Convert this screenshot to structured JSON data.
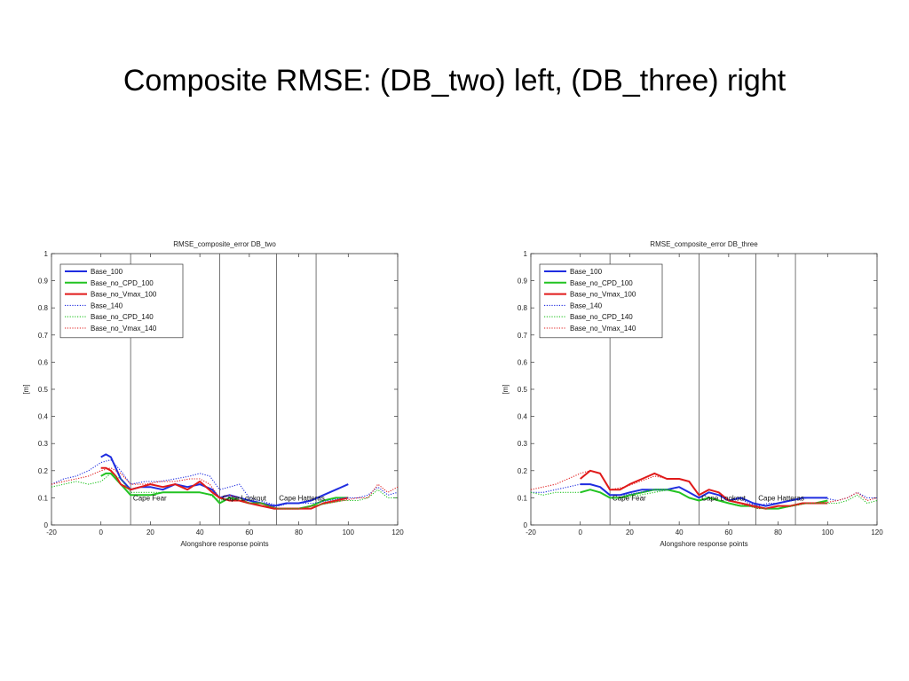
{
  "slide": {
    "title": "Composite RMSE: (DB_two) left, (DB_three) right"
  },
  "colors": {
    "blue": "#1f2de0",
    "green": "#22c322",
    "red": "#e01a1a"
  },
  "chart_data": [
    {
      "type": "line",
      "title": "RMSE_composite_error DB_two",
      "xlabel": "Alongshore response points",
      "ylabel": "[m]",
      "xlim": [
        -20,
        120
      ],
      "ylim": [
        0,
        1
      ],
      "xticks": [
        -20,
        0,
        20,
        40,
        60,
        80,
        100,
        120
      ],
      "yticks": [
        0,
        0.1,
        0.2,
        0.3,
        0.4,
        0.5,
        0.6,
        0.7,
        0.8,
        0.9,
        1
      ],
      "grid": false,
      "legend_position": "top-left",
      "vertical_lines": [
        12,
        48,
        71,
        87
      ],
      "regions": [
        {
          "label": "Cape Fear",
          "x": 13,
          "y": 0.1
        },
        {
          "label": "Cape Lookout",
          "x": 49,
          "y": 0.1
        },
        {
          "label": "Cape Hatteras",
          "x": 72,
          "y": 0.1
        }
      ],
      "series": [
        {
          "name": "Base_100",
          "color": "#1f2de0",
          "style": "solid",
          "x": [
            0,
            2,
            4,
            6,
            8,
            10,
            12,
            16,
            20,
            25,
            30,
            35,
            40,
            45,
            48,
            52,
            56,
            60,
            65,
            70,
            75,
            80,
            85,
            90,
            95,
            100
          ],
          "y": [
            0.25,
            0.26,
            0.25,
            0.21,
            0.17,
            0.15,
            0.13,
            0.14,
            0.14,
            0.13,
            0.15,
            0.14,
            0.15,
            0.13,
            0.1,
            0.11,
            0.1,
            0.09,
            0.08,
            0.07,
            0.08,
            0.08,
            0.09,
            0.11,
            0.13,
            0.15
          ]
        },
        {
          "name": "Base_no_CPD_100",
          "color": "#22c322",
          "style": "solid",
          "x": [
            0,
            2,
            4,
            6,
            8,
            10,
            12,
            16,
            20,
            25,
            30,
            35,
            40,
            45,
            48,
            52,
            56,
            60,
            65,
            70,
            75,
            80,
            85,
            90,
            95,
            100
          ],
          "y": [
            0.18,
            0.19,
            0.19,
            0.17,
            0.15,
            0.13,
            0.11,
            0.11,
            0.11,
            0.12,
            0.12,
            0.12,
            0.12,
            0.11,
            0.08,
            0.1,
            0.09,
            0.08,
            0.08,
            0.06,
            0.06,
            0.06,
            0.07,
            0.09,
            0.1,
            0.1
          ]
        },
        {
          "name": "Base_no_Vmax_100",
          "color": "#e01a1a",
          "style": "solid",
          "x": [
            0,
            2,
            4,
            6,
            8,
            10,
            12,
            16,
            20,
            25,
            30,
            35,
            40,
            45,
            48,
            52,
            56,
            60,
            65,
            70,
            75,
            80,
            85,
            90,
            95,
            100
          ],
          "y": [
            0.21,
            0.21,
            0.2,
            0.18,
            0.15,
            0.14,
            0.13,
            0.14,
            0.15,
            0.14,
            0.15,
            0.13,
            0.16,
            0.12,
            0.1,
            0.09,
            0.09,
            0.08,
            0.07,
            0.06,
            0.06,
            0.06,
            0.06,
            0.08,
            0.09,
            0.1
          ]
        },
        {
          "name": "Base_140",
          "color": "#1f2de0",
          "style": "dotted",
          "x": [
            -20,
            -15,
            -10,
            -5,
            0,
            4,
            8,
            12,
            18,
            24,
            30,
            36,
            40,
            44,
            48,
            52,
            56,
            60,
            64,
            68,
            72,
            76,
            80,
            86,
            92,
            98,
            104,
            108,
            112,
            116,
            120
          ],
          "y": [
            0.15,
            0.17,
            0.18,
            0.2,
            0.23,
            0.24,
            0.2,
            0.15,
            0.16,
            0.16,
            0.17,
            0.18,
            0.19,
            0.18,
            0.13,
            0.14,
            0.15,
            0.1,
            0.09,
            0.08,
            0.07,
            0.08,
            0.08,
            0.08,
            0.09,
            0.1,
            0.1,
            0.11,
            0.14,
            0.11,
            0.12
          ]
        },
        {
          "name": "Base_no_CPD_140",
          "color": "#22c322",
          "style": "dotted",
          "x": [
            -20,
            -15,
            -10,
            -5,
            0,
            4,
            8,
            12,
            18,
            24,
            30,
            36,
            40,
            44,
            48,
            52,
            56,
            60,
            64,
            68,
            72,
            76,
            80,
            86,
            92,
            98,
            104,
            108,
            112,
            116,
            120
          ],
          "y": [
            0.14,
            0.15,
            0.16,
            0.15,
            0.16,
            0.19,
            0.17,
            0.12,
            0.12,
            0.12,
            0.12,
            0.12,
            0.12,
            0.11,
            0.09,
            0.1,
            0.1,
            0.08,
            0.08,
            0.07,
            0.06,
            0.06,
            0.06,
            0.07,
            0.08,
            0.09,
            0.09,
            0.1,
            0.13,
            0.1,
            0.1
          ]
        },
        {
          "name": "Base_no_Vmax_140",
          "color": "#e01a1a",
          "style": "dotted",
          "x": [
            -20,
            -15,
            -10,
            -5,
            0,
            4,
            8,
            12,
            18,
            24,
            30,
            36,
            40,
            44,
            48,
            52,
            56,
            60,
            64,
            68,
            72,
            76,
            80,
            86,
            92,
            98,
            104,
            108,
            112,
            116,
            120
          ],
          "y": [
            0.15,
            0.16,
            0.17,
            0.18,
            0.2,
            0.21,
            0.19,
            0.15,
            0.15,
            0.16,
            0.16,
            0.17,
            0.17,
            0.15,
            0.1,
            0.11,
            0.1,
            0.08,
            0.08,
            0.07,
            0.06,
            0.06,
            0.06,
            0.07,
            0.08,
            0.09,
            0.1,
            0.1,
            0.15,
            0.12,
            0.14
          ]
        }
      ]
    },
    {
      "type": "line",
      "title": "RMSE_composite_error DB_three",
      "xlabel": "Alongshore response points",
      "ylabel": "[m]",
      "xlim": [
        -20,
        120
      ],
      "ylim": [
        0,
        1
      ],
      "xticks": [
        -20,
        0,
        20,
        40,
        60,
        80,
        100,
        120
      ],
      "yticks": [
        0,
        0.1,
        0.2,
        0.3,
        0.4,
        0.5,
        0.6,
        0.7,
        0.8,
        0.9,
        1
      ],
      "grid": false,
      "legend_position": "top-left",
      "vertical_lines": [
        12,
        48,
        71,
        87
      ],
      "regions": [
        {
          "label": "Cape Fear",
          "x": 13,
          "y": 0.1
        },
        {
          "label": "Cape Lookout",
          "x": 49,
          "y": 0.1
        },
        {
          "label": "Cape Hatteras",
          "x": 72,
          "y": 0.1
        }
      ],
      "series": [
        {
          "name": "Base_100",
          "color": "#1f2de0",
          "style": "solid",
          "x": [
            0,
            4,
            8,
            12,
            16,
            20,
            25,
            30,
            35,
            40,
            44,
            48,
            52,
            56,
            60,
            65,
            70,
            75,
            80,
            85,
            90,
            95,
            100
          ],
          "y": [
            0.15,
            0.15,
            0.14,
            0.11,
            0.11,
            0.12,
            0.13,
            0.13,
            0.13,
            0.14,
            0.12,
            0.1,
            0.12,
            0.11,
            0.09,
            0.1,
            0.08,
            0.07,
            0.08,
            0.09,
            0.1,
            0.1,
            0.1
          ]
        },
        {
          "name": "Base_no_CPD_100",
          "color": "#22c322",
          "style": "solid",
          "x": [
            0,
            4,
            8,
            12,
            16,
            20,
            25,
            30,
            35,
            40,
            44,
            48,
            52,
            56,
            60,
            65,
            70,
            75,
            80,
            85,
            90,
            95,
            100
          ],
          "y": [
            0.12,
            0.13,
            0.12,
            0.1,
            0.1,
            0.11,
            0.12,
            0.13,
            0.13,
            0.12,
            0.1,
            0.09,
            0.1,
            0.09,
            0.08,
            0.07,
            0.07,
            0.06,
            0.06,
            0.07,
            0.08,
            0.08,
            0.09
          ]
        },
        {
          "name": "Base_no_Vmax_100",
          "color": "#e01a1a",
          "style": "solid",
          "x": [
            0,
            4,
            8,
            12,
            16,
            20,
            25,
            30,
            35,
            40,
            44,
            48,
            52,
            56,
            60,
            65,
            70,
            75,
            80,
            85,
            90,
            95,
            100
          ],
          "y": [
            0.17,
            0.2,
            0.19,
            0.13,
            0.13,
            0.15,
            0.17,
            0.19,
            0.17,
            0.17,
            0.16,
            0.11,
            0.13,
            0.12,
            0.09,
            0.08,
            0.07,
            0.06,
            0.07,
            0.07,
            0.08,
            0.08,
            0.08
          ]
        },
        {
          "name": "Base_140",
          "color": "#1f2de0",
          "style": "dotted",
          "x": [
            -20,
            -15,
            -10,
            -5,
            0,
            4,
            8,
            12,
            18,
            24,
            30,
            36,
            40,
            44,
            48,
            52,
            56,
            60,
            64,
            68,
            72,
            76,
            80,
            86,
            92,
            98,
            104,
            108,
            112,
            116,
            120
          ],
          "y": [
            0.12,
            0.12,
            0.13,
            0.14,
            0.15,
            0.15,
            0.14,
            0.11,
            0.11,
            0.12,
            0.13,
            0.13,
            0.14,
            0.12,
            0.1,
            0.12,
            0.11,
            0.09,
            0.1,
            0.08,
            0.07,
            0.08,
            0.08,
            0.09,
            0.1,
            0.1,
            0.09,
            0.1,
            0.12,
            0.1,
            0.1
          ]
        },
        {
          "name": "Base_no_CPD_140",
          "color": "#22c322",
          "style": "dotted",
          "x": [
            -20,
            -15,
            -10,
            -5,
            0,
            4,
            8,
            12,
            18,
            24,
            30,
            36,
            40,
            44,
            48,
            52,
            56,
            60,
            64,
            68,
            72,
            76,
            80,
            86,
            92,
            98,
            104,
            108,
            112,
            116,
            120
          ],
          "y": [
            0.12,
            0.11,
            0.12,
            0.12,
            0.12,
            0.13,
            0.12,
            0.1,
            0.1,
            0.11,
            0.12,
            0.13,
            0.12,
            0.1,
            0.09,
            0.1,
            0.09,
            0.08,
            0.07,
            0.07,
            0.06,
            0.06,
            0.06,
            0.07,
            0.08,
            0.08,
            0.08,
            0.09,
            0.11,
            0.08,
            0.09
          ]
        },
        {
          "name": "Base_no_Vmax_140",
          "color": "#e01a1a",
          "style": "dotted",
          "x": [
            -20,
            -15,
            -10,
            -5,
            0,
            4,
            8,
            12,
            18,
            24,
            30,
            36,
            40,
            44,
            48,
            52,
            56,
            60,
            64,
            68,
            72,
            76,
            80,
            86,
            92,
            98,
            104,
            108,
            112,
            116,
            120
          ],
          "y": [
            0.13,
            0.14,
            0.15,
            0.17,
            0.19,
            0.2,
            0.19,
            0.13,
            0.14,
            0.16,
            0.18,
            0.17,
            0.17,
            0.16,
            0.11,
            0.13,
            0.12,
            0.09,
            0.08,
            0.07,
            0.06,
            0.06,
            0.07,
            0.07,
            0.08,
            0.08,
            0.09,
            0.1,
            0.12,
            0.09,
            0.1
          ]
        }
      ]
    }
  ]
}
